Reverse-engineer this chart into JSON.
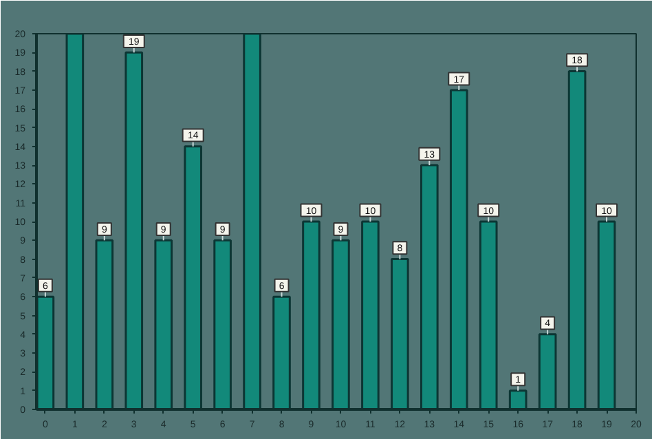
{
  "chart_data": {
    "type": "bar",
    "x": [
      0,
      1,
      2,
      3,
      4,
      5,
      6,
      7,
      8,
      9,
      10,
      11,
      12,
      13,
      14,
      15,
      16,
      17,
      18,
      19
    ],
    "values": [
      6,
      20,
      9,
      19,
      9,
      14,
      9,
      20,
      6,
      10,
      9,
      10,
      8,
      13,
      17,
      10,
      1,
      4,
      18,
      10
    ],
    "color": "#12897a",
    "xlim": [
      -0.3,
      20
    ],
    "xticks": [
      0,
      1,
      2,
      3,
      4,
      5,
      6,
      7,
      8,
      9,
      10,
      11,
      12,
      13,
      14,
      15,
      16,
      17,
      18,
      19,
      20
    ],
    "ylim": [
      0,
      20
    ],
    "yticks": [
      0,
      1,
      2,
      3,
      4,
      5,
      6,
      7,
      8,
      9,
      10,
      11,
      12,
      13,
      14,
      15,
      16,
      17,
      18,
      19,
      20
    ],
    "value_labels": [
      "6",
      null,
      "9",
      "19",
      "9",
      "14",
      "9",
      null,
      "6",
      "10",
      "9",
      "10",
      "8",
      "13",
      "17",
      "10",
      "1",
      "4",
      "18",
      "10"
    ],
    "grid": false
  }
}
